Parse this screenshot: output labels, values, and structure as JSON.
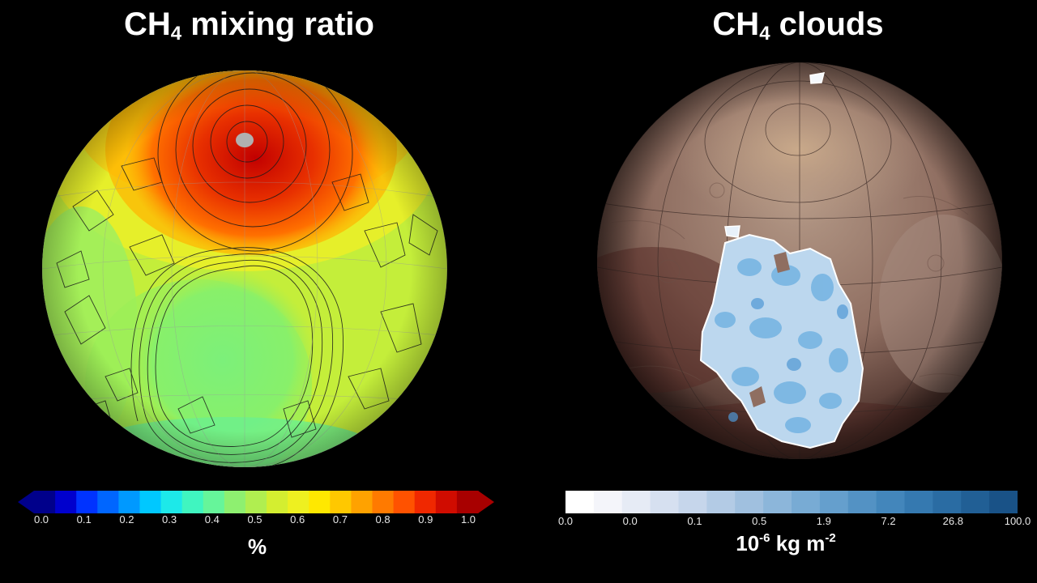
{
  "left_panel": {
    "title_main": "CH",
    "title_sub": "4",
    "title_rest": " mixing ratio",
    "colorbar": {
      "ticks": [
        "0.0",
        "0.1",
        "0.2",
        "0.3",
        "0.4",
        "0.5",
        "0.6",
        "0.7",
        "0.8",
        "0.9",
        "1.0"
      ],
      "colors": [
        "#00008b",
        "#0000cd",
        "#0033ff",
        "#0066ff",
        "#0099ff",
        "#00c8ff",
        "#1de9e9",
        "#40f5c0",
        "#66f59a",
        "#8ef070",
        "#b0ee50",
        "#d4ee30",
        "#eef020",
        "#ffe800",
        "#ffc800",
        "#ffa200",
        "#ff7a00",
        "#ff5200",
        "#f02800",
        "#d00c00",
        "#a80000"
      ],
      "unit": "%"
    }
  },
  "right_panel": {
    "title_main": "CH",
    "title_sub": "4",
    "title_rest": " clouds",
    "colorbar": {
      "ticks": [
        "0.0",
        "0.0",
        "0.1",
        "0.5",
        "1.9",
        "7.2",
        "26.8",
        "100.0"
      ],
      "colors": [
        "#ffffff",
        "#f4f5fa",
        "#e6ebf5",
        "#d6e0f0",
        "#c6d6eb",
        "#b3cbe5",
        "#a0c0df",
        "#8cb6da",
        "#78abd4",
        "#659fcd",
        "#5392c4",
        "#4386bb",
        "#3579b0",
        "#2a6ca3",
        "#215f95",
        "#195287"
      ],
      "unit_base": "10",
      "unit_exp1": "-6",
      "unit_mid": " kg m",
      "unit_exp2": "-2"
    }
  }
}
